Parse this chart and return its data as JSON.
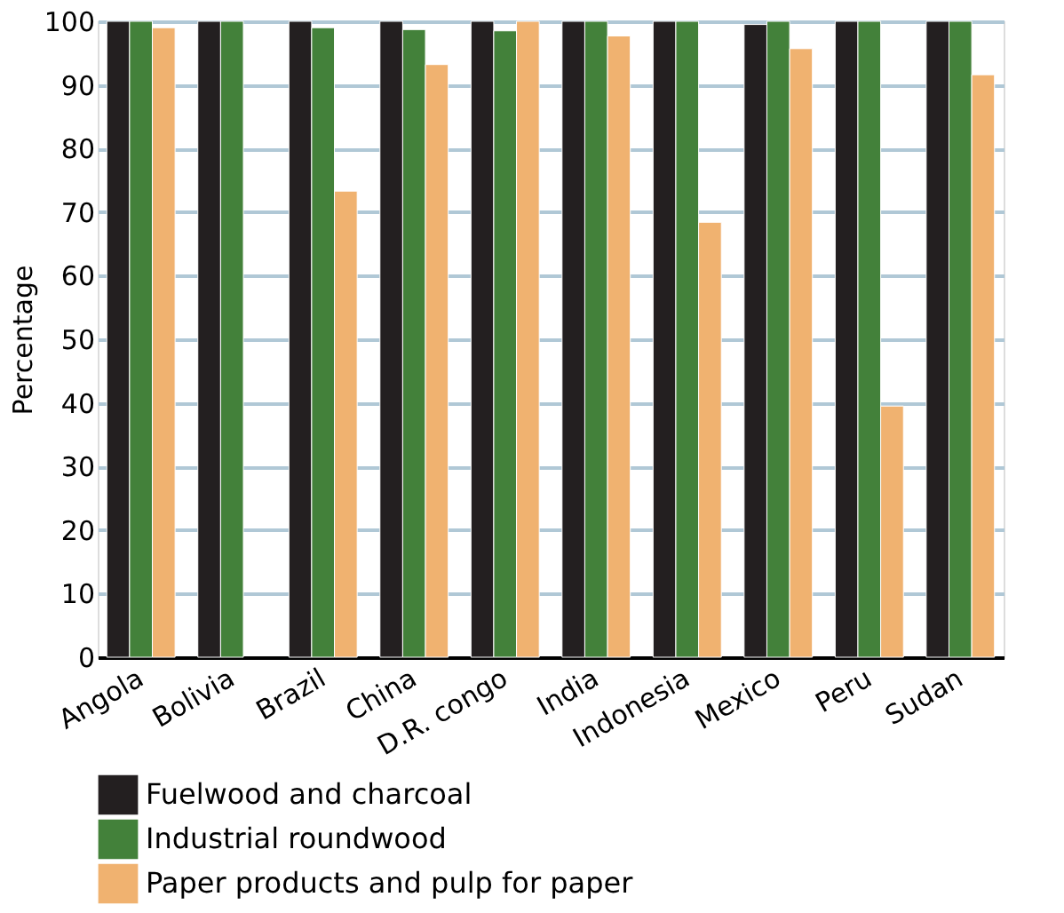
{
  "chart_data": {
    "type": "bar",
    "ylabel": "Percentage",
    "categories": [
      "Angola",
      "Bolivia",
      "Brazil",
      "China",
      "D.R. congo",
      "India",
      "Indonesia",
      "Mexico",
      "Peru",
      "Sudan"
    ],
    "series": [
      {
        "name": "Fuelwood and charcoal",
        "color": "#231f20",
        "values": [
          100,
          100,
          100,
          100,
          100,
          100,
          100,
          99.5,
          100,
          100
        ]
      },
      {
        "name": "Industrial roundwood",
        "color": "#43813a",
        "values": [
          100,
          100,
          99,
          98.7,
          98.5,
          100,
          100,
          100,
          100,
          100
        ]
      },
      {
        "name": "Paper products and pulp for paper",
        "color": "#f0b270",
        "values": [
          99,
          null,
          73.3,
          93.2,
          100,
          97.7,
          68.4,
          95.7,
          39.5,
          91.6
        ]
      }
    ],
    "ylim": [
      0,
      100
    ],
    "yticks": [
      0,
      10,
      20,
      30,
      40,
      50,
      60,
      70,
      80,
      90,
      100
    ],
    "grid": "y",
    "legend": "bottom"
  }
}
